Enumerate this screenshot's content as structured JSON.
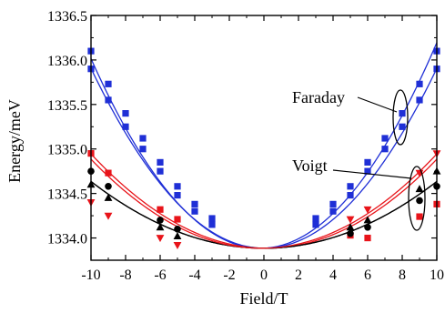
{
  "chart_data": {
    "type": "line",
    "title": "",
    "xlabel": "Field/T",
    "ylabel": "Energy/meV",
    "xlim": [
      -10,
      10
    ],
    "ylim": [
      1333.75,
      1336.5
    ],
    "xticks": [
      -10,
      -8,
      -6,
      -4,
      -2,
      0,
      2,
      4,
      6,
      8,
      10
    ],
    "xtick_labels": [
      "-10",
      "-8",
      "-6",
      "-4",
      "-2",
      "0",
      "2",
      "4",
      "6",
      "8",
      "10"
    ],
    "yticks": [
      1334.0,
      1334.5,
      1335.0,
      1335.5,
      1336.0,
      1336.5
    ],
    "ytick_labels": [
      "1334.0",
      "1334.5",
      "1335.0",
      "1335.5",
      "1336.0",
      "1336.5"
    ],
    "grid": false,
    "annotations": [
      {
        "text": "Faraday",
        "group": "blue"
      },
      {
        "text": "Voigt",
        "group": "red-black"
      }
    ],
    "series": [
      {
        "color": "#1f2fd6",
        "marker": "square",
        "fit": {
          "a": 0.0222,
          "b": 0.009,
          "c": 1333.885
        },
        "x": [
          -10,
          -9,
          -8,
          -7,
          -6,
          -5,
          -4,
          -3,
          3,
          4,
          5,
          6,
          7,
          8,
          9,
          10
        ],
        "y": [
          1336.1,
          1335.73,
          1335.4,
          1335.12,
          1334.85,
          1334.58,
          1334.38,
          1334.22,
          1334.22,
          1334.38,
          1334.58,
          1334.85,
          1335.12,
          1335.4,
          1335.73,
          1336.1
        ]
      },
      {
        "color": "#1f2fd6",
        "marker": "square",
        "fit": {
          "a": 0.0202,
          "b": 0.0,
          "c": 1333.885
        },
        "x": [
          -10,
          -9,
          -8,
          -7,
          -6,
          -5,
          -4,
          -3,
          3,
          4,
          5,
          6,
          7,
          8,
          9,
          10
        ],
        "y": [
          1335.9,
          1335.55,
          1335.25,
          1335.0,
          1334.75,
          1334.48,
          1334.3,
          1334.15,
          1334.15,
          1334.3,
          1334.48,
          1334.75,
          1335.0,
          1335.25,
          1335.55,
          1335.9
        ]
      },
      {
        "color": "#e8141a",
        "marker": "square",
        "fit": {
          "a": 0.0103,
          "b": -0.003,
          "c": 1333.885
        },
        "x": [
          -10,
          -9,
          -6,
          -5,
          5,
          6,
          9,
          10
        ],
        "y": [
          1334.95,
          1334.73,
          1334.32,
          1334.21,
          1334.03,
          1334.0,
          1334.24,
          1334.38
        ]
      },
      {
        "color": "#000000",
        "marker": "circle",
        "fit": {
          "a": 0.0075,
          "b": 0.0,
          "c": 1333.885
        },
        "x": [
          -10,
          -9,
          -6,
          -5,
          5,
          6,
          9,
          10
        ],
        "y": [
          1334.75,
          1334.58,
          1334.2,
          1334.1,
          1334.05,
          1334.12,
          1334.42,
          1334.58
        ]
      },
      {
        "color": "#000000",
        "marker": "triangle-up",
        "fit": {
          "a": 0.0075,
          "b": 0.0,
          "c": 1333.885
        },
        "x": [
          -10,
          -9,
          -6,
          -5,
          5,
          6,
          9,
          10
        ],
        "y": [
          1334.6,
          1334.45,
          1334.12,
          1334.02,
          1334.12,
          1334.2,
          1334.55,
          1334.75
        ]
      },
      {
        "color": "#e8141a",
        "marker": "triangle-down",
        "fit": {
          "a": 0.0103,
          "b": 0.003,
          "c": 1333.885
        },
        "x": [
          -10,
          -9,
          -6,
          -5,
          5,
          6,
          9,
          10
        ],
        "y": [
          1334.4,
          1334.25,
          1334.0,
          1333.92,
          1334.21,
          1334.32,
          1334.73,
          1334.95
        ]
      }
    ]
  }
}
